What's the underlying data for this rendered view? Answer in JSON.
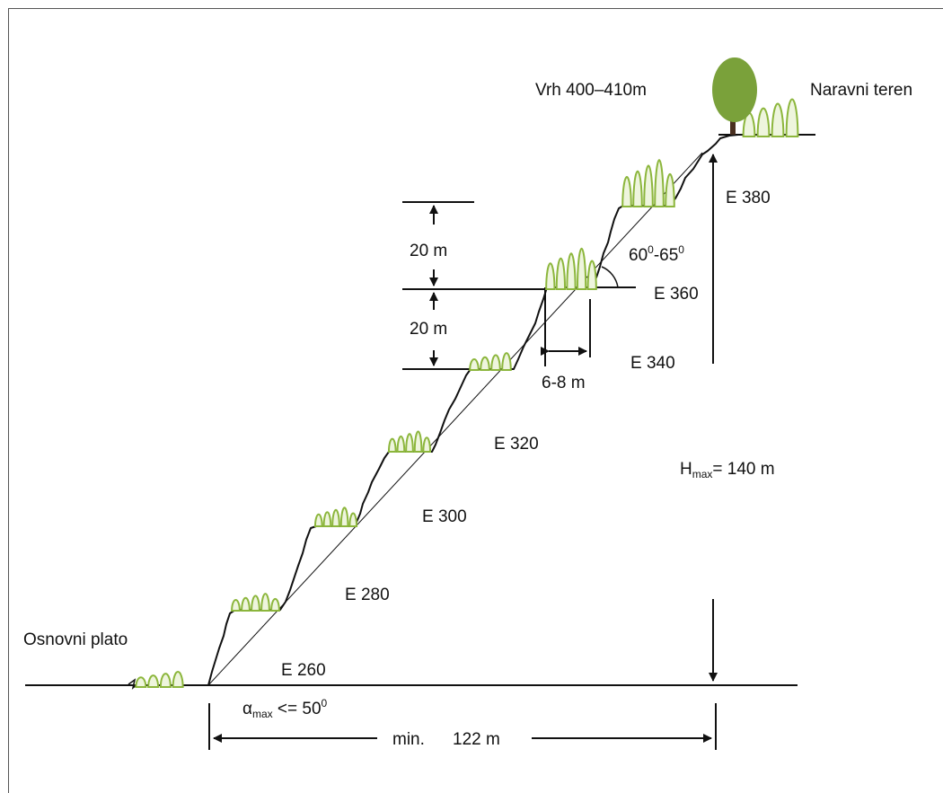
{
  "labels": {
    "summit": "Vrh 400–410m",
    "natural_terrain": "Naravni teren",
    "base_plateau": "Osnovni plato",
    "e380": "E 380",
    "e360": "E 360",
    "e340": "E 340",
    "e320": "E 320",
    "e300": "E 300",
    "e280": "E 280",
    "e260": "E 260",
    "bench_height_1": "20 m",
    "bench_height_2": "20 m",
    "bench_width": "6-8 m",
    "face_angle_a": "60",
    "face_angle_sup_a": "0",
    "face_angle_b": "-65",
    "face_angle_sup_b": "0",
    "hmax_h": "H",
    "hmax_sub": "max",
    "hmax_val": "= 140 m",
    "alpha": "α",
    "alpha_sub": "max",
    "alpha_val": " <= 50",
    "alpha_sup": "0",
    "min_prefix": "min.",
    "min_value": "122 m"
  },
  "colors": {
    "vegetation_fill": "#eef5dd",
    "vegetation_stroke": "#8cb63c",
    "tree": "#7aa13a",
    "trunk": "#4a3020",
    "line": "#111111"
  }
}
